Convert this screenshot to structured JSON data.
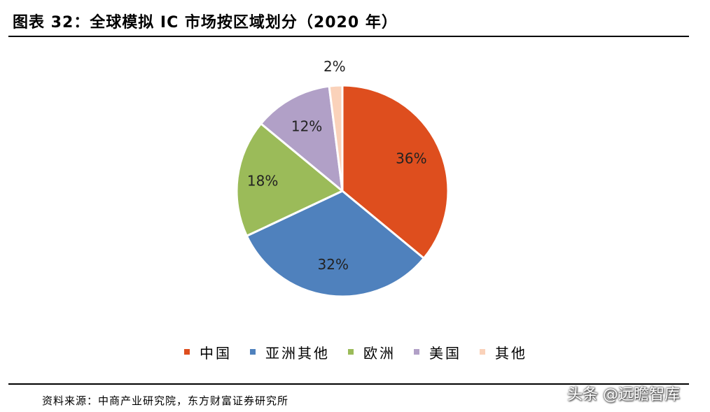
{
  "title": "图表 32：全球模拟 IC 市场按区域划分（2020 年）",
  "source": "资料来源：中商产业研究院，东方财富证券研究所",
  "watermark": "头条 @远瞻智库",
  "chart_data": {
    "type": "pie",
    "title": "图表 32：全球模拟 IC 市场按区域划分（2020 年）",
    "categories": [
      "中国",
      "亚洲其他",
      "欧洲",
      "美国",
      "其他"
    ],
    "values": [
      36,
      32,
      18,
      12,
      2
    ],
    "labels": [
      "36%",
      "32%",
      "18%",
      "12%",
      "2%"
    ],
    "colors": [
      "#DE4E1E",
      "#4F81BD",
      "#9BBB59",
      "#B1A0C7",
      "#FAD2BA"
    ],
    "start_angle_deg": 0,
    "direction": "clockwise",
    "legend_position": "bottom"
  }
}
